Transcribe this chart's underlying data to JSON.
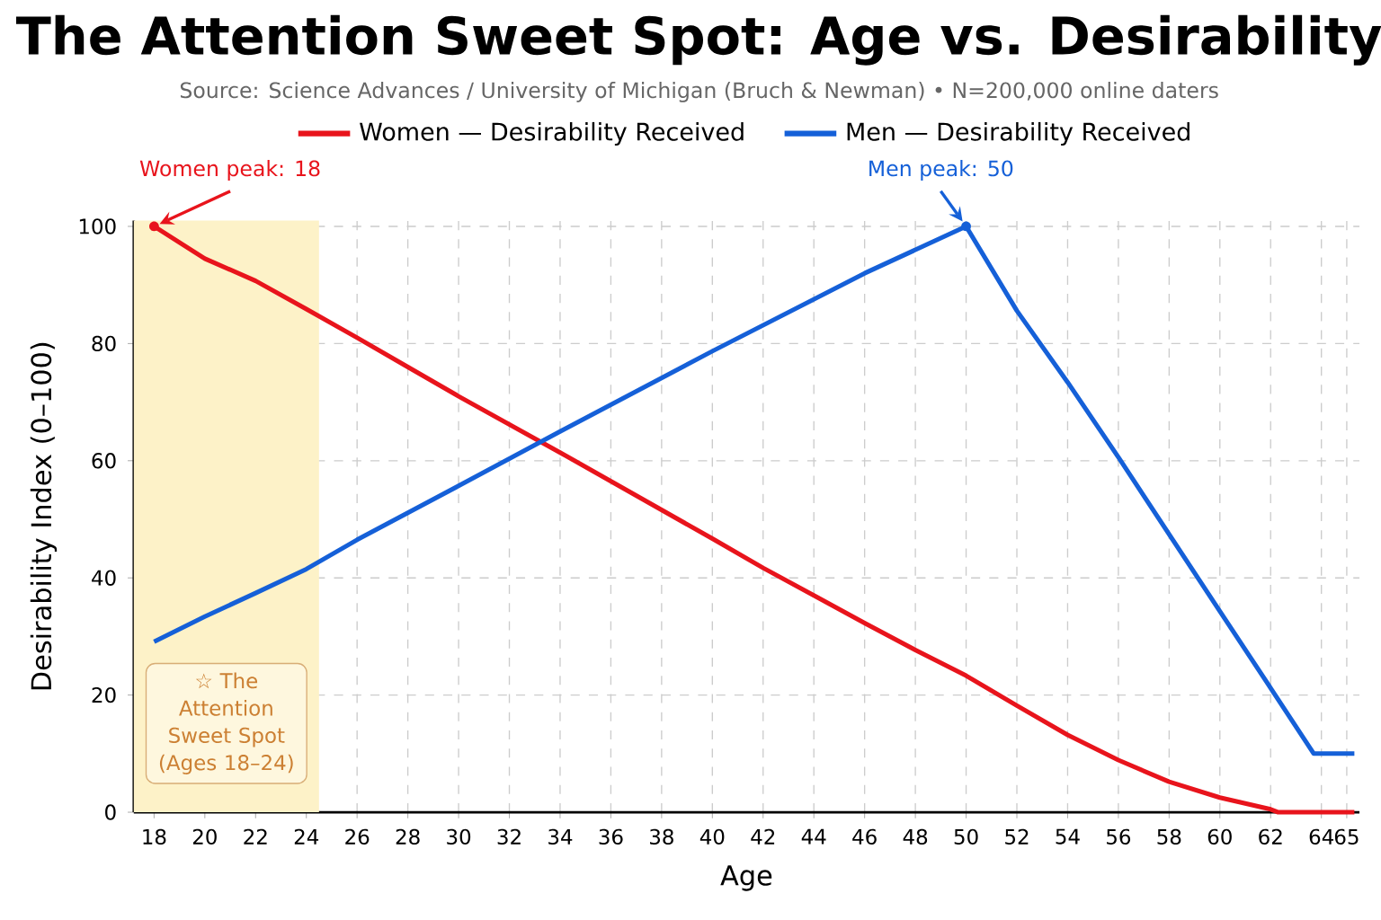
{
  "chart_data": {
    "type": "line",
    "title": "The Attention Sweet Spot: Age vs. Desirability",
    "subtitle": "Source: Science Advances / University of Michigan (Bruch & Newman) • N=200,000 online daters",
    "xlabel": "Age",
    "ylabel": "Desirability Index (0–100)",
    "xlim": [
      17.2,
      65.5
    ],
    "ylim": [
      0,
      101
    ],
    "xticks": [
      18,
      20,
      22,
      24,
      26,
      28,
      30,
      32,
      34,
      36,
      38,
      40,
      42,
      44,
      46,
      48,
      50,
      52,
      54,
      56,
      58,
      60,
      62,
      64,
      65
    ],
    "yticks": [
      0,
      20,
      40,
      60,
      80,
      100
    ],
    "grid": true,
    "legend": "top",
    "line_style": "solid",
    "marker": "none",
    "series": [
      {
        "name": "Women — Desirability Received",
        "color": "#e8141c",
        "x": [
          18,
          20,
          22,
          24,
          26,
          28,
          30,
          32,
          34,
          36,
          38,
          40,
          42,
          44,
          46,
          48,
          50,
          52,
          54,
          56,
          58,
          60,
          62,
          62.3,
          65.3
        ],
        "values": [
          100,
          94.5,
          90.7,
          85.9,
          81,
          76,
          71,
          66.2,
          61.4,
          56.5,
          51.6,
          46.7,
          41.7,
          37,
          32.3,
          27.7,
          23.3,
          18.2,
          13.2,
          8.9,
          5.2,
          2.5,
          0.5,
          0,
          0
        ]
      },
      {
        "name": "Men — Desirability Received",
        "color": "#1560d8",
        "x": [
          18,
          20,
          22,
          24,
          26,
          30,
          34,
          40,
          46,
          50,
          52,
          54,
          56,
          60,
          62,
          63.7,
          65.3
        ],
        "values": [
          29.1,
          33.4,
          37.4,
          41.5,
          46.5,
          55.7,
          65,
          78.7,
          92,
          100,
          85.6,
          73.4,
          60.6,
          34.3,
          21.2,
          10,
          10
        ]
      }
    ],
    "annotations": [
      {
        "text": "Women peak: 18",
        "x": 18,
        "y": 100
      },
      {
        "text": "Men peak: 50",
        "x": 50,
        "y": 100
      }
    ],
    "bands": [
      {
        "axis": "x",
        "from": 17.2,
        "to": 24.5,
        "label": "☆ The Attention Sweet Spot (Ages 18–24)",
        "color": "#fdf2c8"
      }
    ]
  }
}
